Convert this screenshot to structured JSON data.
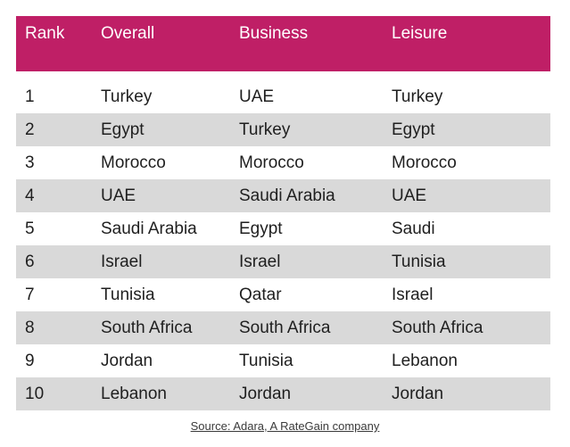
{
  "table": {
    "headers": [
      "Rank",
      "Overall",
      "Business",
      "Leisure"
    ],
    "rows": [
      [
        "1",
        "Turkey",
        "UAE",
        "Turkey"
      ],
      [
        "2",
        "Egypt",
        "Turkey",
        "Egypt"
      ],
      [
        "3",
        "Morocco",
        "Morocco",
        "Morocco"
      ],
      [
        "4",
        "UAE",
        "Saudi Arabia",
        "UAE"
      ],
      [
        "5",
        "Saudi Arabia",
        "Egypt",
        "Saudi"
      ],
      [
        "6",
        "Israel",
        "Israel",
        "Tunisia"
      ],
      [
        "7",
        "Tunisia",
        "Qatar",
        "Israel"
      ],
      [
        "8",
        "South Africa",
        "South Africa",
        "South Africa"
      ],
      [
        "9",
        "Jordan",
        "Tunisia",
        "Lebanon"
      ],
      [
        "10",
        "Lebanon",
        "Jordan",
        "Jordan"
      ]
    ]
  },
  "source": "Source: Adara, A RateGain company",
  "colors": {
    "header_background": "#bf1f66",
    "header_text": "#ffffff",
    "shaded_row": "#d9d9d9"
  }
}
